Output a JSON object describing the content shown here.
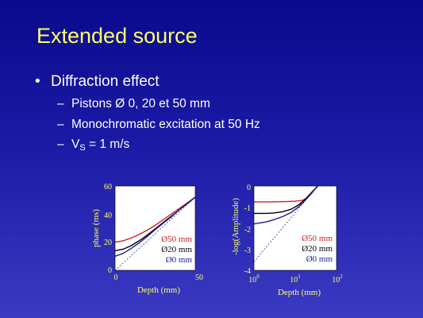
{
  "title": "Extended source",
  "bullet_main": "Diffraction effect",
  "sub_items": [
    "Pistons Ø 0, 20 et 50 mm",
    "Monochromatic excitation at 50 Hz"
  ],
  "vs_item": {
    "prefix": "V",
    "subscript": "S",
    "suffix": " = 1 m/s"
  },
  "colors": {
    "red": "#cc2222",
    "black": "#000000",
    "blue": "#1a1a99",
    "title": "#ffff66"
  },
  "chart_data": [
    {
      "type": "line",
      "xlabel": "Depth (mm)",
      "ylabel": "phase (ms)",
      "xlim": [
        0,
        50
      ],
      "ylim": [
        0,
        60
      ],
      "x_ticks": [
        "0",
        "50"
      ],
      "y_ticks": [
        "0",
        "20",
        "40",
        "60"
      ],
      "legend": [
        "Ø50 mm",
        "Ø20 mm",
        "Ø0 mm"
      ],
      "series": [
        {
          "name": "Ø50 mm",
          "color": "#cc2222",
          "x": [
            0,
            5,
            10,
            15,
            20,
            25,
            30,
            35,
            40,
            45,
            50
          ],
          "y": [
            20,
            21,
            23,
            25.5,
            28.5,
            32,
            36,
            40,
            44,
            48,
            52
          ]
        },
        {
          "name": "Ø20 mm",
          "color": "#000000",
          "x": [
            0,
            5,
            10,
            15,
            20,
            25,
            30,
            35,
            40,
            45,
            50
          ],
          "y": [
            14,
            15,
            17.5,
            21,
            25,
            29.5,
            34,
            38.5,
            43,
            47.5,
            52
          ]
        },
        {
          "name": "Ø0 mm",
          "color": "#1a1a99",
          "x": [
            0,
            5,
            10,
            15,
            20,
            25,
            30,
            35,
            40,
            45,
            50
          ],
          "y": [
            10,
            12,
            15.5,
            19.5,
            24,
            29,
            33.5,
            38,
            43,
            47.5,
            52
          ]
        },
        {
          "name": "",
          "color": "#1a1a99",
          "dashed": true,
          "x": [
            0,
            50
          ],
          "y": [
            0,
            52
          ]
        }
      ]
    },
    {
      "type": "line",
      "xlabel": "Depth (mm)",
      "ylabel": "-log(Amplitude)",
      "xscale": "log",
      "xlim": [
        1,
        100
      ],
      "ylim": [
        -4,
        0
      ],
      "x_ticks": [
        {
          "base": "10",
          "exp": "0"
        },
        {
          "base": "10",
          "exp": "1"
        },
        {
          "base": "10",
          "exp": "2"
        }
      ],
      "y_ticks": [
        "0",
        "-1",
        "-2",
        "-3",
        "-4"
      ],
      "legend": [
        "Ø50 mm",
        "Ø20 mm",
        "Ø0 mm"
      ],
      "series": [
        {
          "name": "Ø50 mm",
          "color": "#cc2222",
          "x": [
            1,
            3,
            6,
            10,
            15,
            20,
            25,
            30,
            35
          ],
          "y": [
            -0.75,
            -0.75,
            -0.74,
            -0.72,
            -0.68,
            -0.55,
            -0.35,
            -0.15,
            0
          ]
        },
        {
          "name": "Ø20 mm",
          "color": "#000000",
          "x": [
            1,
            2,
            3,
            5,
            8,
            12,
            18,
            25,
            35
          ],
          "y": [
            -1.3,
            -1.3,
            -1.28,
            -1.22,
            -1.1,
            -0.9,
            -0.6,
            -0.3,
            0
          ]
        },
        {
          "name": "Ø0 mm",
          "color": "#1a1a99",
          "x": [
            1,
            2,
            3,
            5,
            8,
            12,
            18,
            25,
            35
          ],
          "y": [
            -1.8,
            -1.7,
            -1.6,
            -1.45,
            -1.25,
            -1.0,
            -0.65,
            -0.3,
            0
          ]
        },
        {
          "name": "",
          "color": "#1a1a99",
          "dashed": true,
          "x": [
            1,
            35
          ],
          "y": [
            -3.6,
            0
          ]
        }
      ]
    }
  ]
}
